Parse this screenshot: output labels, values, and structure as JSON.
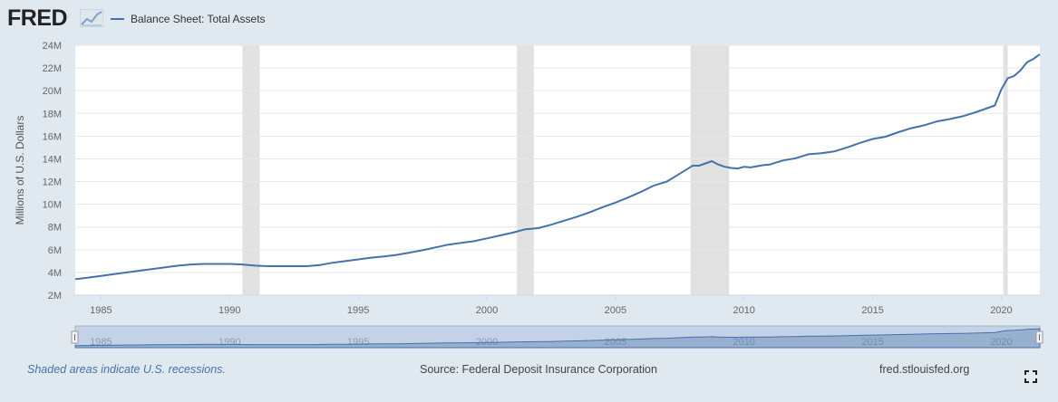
{
  "header": {
    "logo_text": "FRED",
    "legend_label": "Balance Sheet: Total Assets",
    "series_color": "#4572a7"
  },
  "chart_data": {
    "type": "line",
    "title": "",
    "xlabel": "",
    "ylabel": "Millions of U.S. Dollars",
    "xlim": [
      1984.0,
      2021.5
    ],
    "ylim": [
      2,
      24
    ],
    "yticks": [
      2,
      4,
      6,
      8,
      10,
      12,
      14,
      16,
      18,
      20,
      22,
      24
    ],
    "ytick_labels": [
      "2M",
      "4M",
      "6M",
      "8M",
      "10M",
      "12M",
      "14M",
      "16M",
      "18M",
      "20M",
      "22M",
      "24M"
    ],
    "xticks": [
      1985,
      1990,
      1995,
      2000,
      2005,
      2010,
      2015,
      2020
    ],
    "xtick_labels": [
      "1985",
      "1990",
      "1995",
      "2000",
      "2005",
      "2010",
      "2015",
      "2020"
    ],
    "grid": true,
    "legend_position": "top-left",
    "recessions": [
      [
        1990.5,
        1991.17
      ],
      [
        2001.17,
        2001.83
      ],
      [
        2007.92,
        2009.42
      ],
      [
        2020.08,
        2020.25
      ]
    ],
    "series": [
      {
        "name": "Balance Sheet: Total Assets",
        "color": "#4572a7",
        "x": [
          1984.0,
          1984.5,
          1985.0,
          1985.5,
          1986.0,
          1986.5,
          1987.0,
          1987.5,
          1988.0,
          1988.5,
          1989.0,
          1989.5,
          1990.0,
          1990.5,
          1991.0,
          1991.5,
          1992.0,
          1992.5,
          1993.0,
          1993.5,
          1994.0,
          1994.5,
          1995.0,
          1995.5,
          1996.0,
          1996.5,
          1997.0,
          1997.5,
          1998.0,
          1998.5,
          1999.0,
          1999.5,
          2000.0,
          2000.5,
          2001.0,
          2001.5,
          2002.0,
          2002.5,
          2003.0,
          2003.5,
          2004.0,
          2004.5,
          2005.0,
          2005.5,
          2006.0,
          2006.5,
          2007.0,
          2007.5,
          2008.0,
          2008.25,
          2008.5,
          2008.75,
          2009.0,
          2009.25,
          2009.5,
          2009.75,
          2010.0,
          2010.25,
          2010.5,
          2010.75,
          2011.0,
          2011.5,
          2012.0,
          2012.5,
          2013.0,
          2013.5,
          2014.0,
          2014.5,
          2015.0,
          2015.5,
          2016.0,
          2016.5,
          2017.0,
          2017.5,
          2018.0,
          2018.5,
          2019.0,
          2019.5,
          2019.75,
          2020.0,
          2020.25,
          2020.5,
          2020.75,
          2021.0,
          2021.25,
          2021.5
        ],
        "values": [
          3.4,
          3.55,
          3.7,
          3.85,
          4.0,
          4.15,
          4.3,
          4.45,
          4.6,
          4.7,
          4.75,
          4.75,
          4.75,
          4.7,
          4.6,
          4.55,
          4.55,
          4.55,
          4.55,
          4.65,
          4.85,
          5.0,
          5.15,
          5.3,
          5.4,
          5.55,
          5.75,
          5.95,
          6.2,
          6.45,
          6.6,
          6.75,
          7.0,
          7.25,
          7.5,
          7.8,
          7.9,
          8.2,
          8.55,
          8.9,
          9.3,
          9.75,
          10.15,
          10.6,
          11.1,
          11.65,
          12.0,
          12.7,
          13.4,
          13.4,
          13.6,
          13.8,
          13.5,
          13.3,
          13.2,
          13.15,
          13.3,
          13.25,
          13.35,
          13.45,
          13.5,
          13.85,
          14.05,
          14.4,
          14.5,
          14.65,
          15.0,
          15.4,
          15.75,
          15.95,
          16.35,
          16.7,
          16.95,
          17.3,
          17.5,
          17.75,
          18.1,
          18.5,
          18.7,
          20.1,
          21.1,
          21.3,
          21.8,
          22.5,
          22.8,
          23.2
        ]
      }
    ]
  },
  "navigator": {
    "labels": [
      "1985",
      "1990",
      "1995",
      "2000",
      "2005",
      "2010",
      "2015",
      "2020"
    ]
  },
  "footer": {
    "recession_note": "Shaded areas indicate U.S. recessions.",
    "source": "Source: Federal Deposit Insurance Corporation",
    "site": "fred.stlouisfed.org"
  },
  "icons": {
    "logo_mark": "fred-chart-logo-icon",
    "fullscreen": "fullscreen-icon"
  }
}
